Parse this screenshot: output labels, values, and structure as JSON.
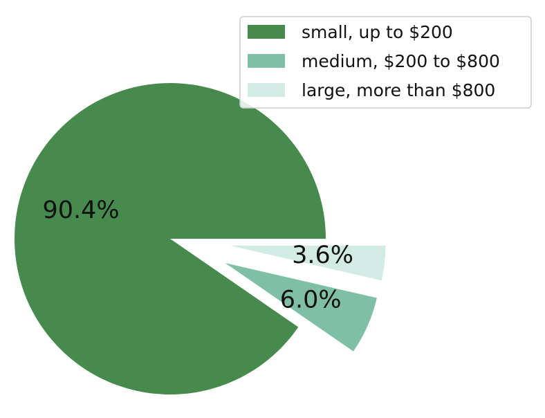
{
  "chart_data": {
    "type": "pie",
    "title": "",
    "slices": [
      {
        "label": "small, up to $200",
        "value": 90.4,
        "value_label": "90.4%",
        "color": "#468a4e",
        "exploded": false
      },
      {
        "label": "medium, $200 to $800",
        "value": 6.0,
        "value_label": "6.0%",
        "color": "#7fbfa5",
        "exploded": true
      },
      {
        "label": "large, more than $800",
        "value": 3.6,
        "value_label": "3.6%",
        "color": "#d2ebe4",
        "exploded": true
      }
    ],
    "start_angle": 0,
    "direction": "counterclockwise",
    "legend": {
      "position": "top-right"
    }
  }
}
